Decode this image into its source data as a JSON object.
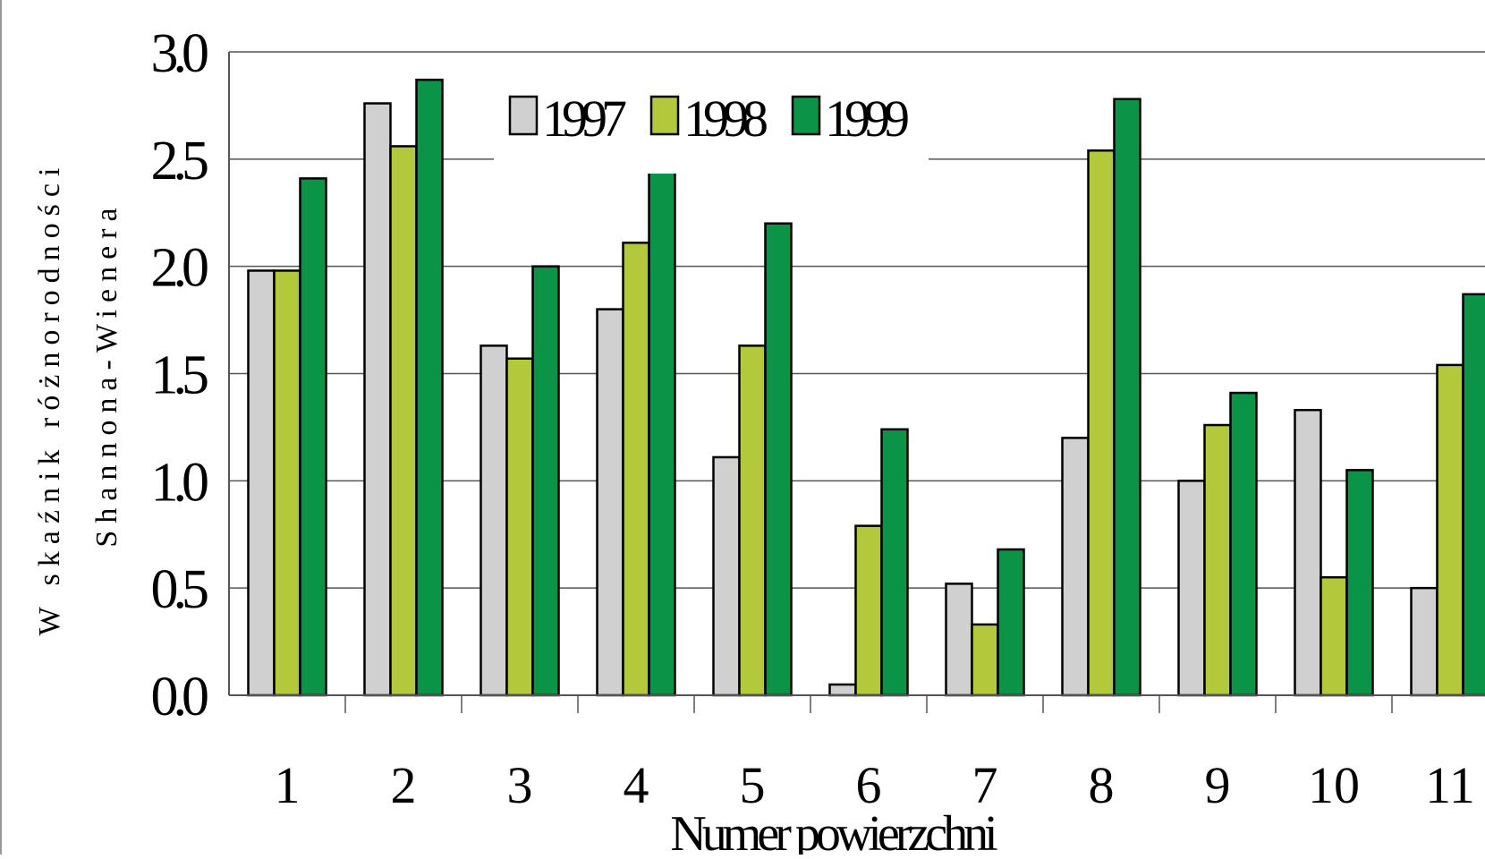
{
  "chart_data": {
    "type": "bar",
    "title": "",
    "xlabel": "Numer powierzchni",
    "ylabel_line1": "W skaźnik różnorodności",
    "ylabel_line2": "Shannona-Wienera",
    "ylim": [
      0,
      3
    ],
    "yticks": [
      "0.0",
      "0.5",
      "1.0",
      "1.5",
      "2.0",
      "2.5",
      "3.0"
    ],
    "categories": [
      "1",
      "2",
      "3",
      "4",
      "5",
      "6",
      "7",
      "8",
      "9",
      "10",
      "11"
    ],
    "grid": true,
    "legend_position": "top",
    "series": [
      {
        "name": "1997",
        "color": "#d0d0d0",
        "values": [
          1.98,
          2.76,
          1.63,
          1.8,
          1.11,
          0.05,
          0.52,
          1.2,
          1.0,
          1.33,
          0.5
        ]
      },
      {
        "name": "1998",
        "color": "#b3c93b",
        "values": [
          1.98,
          2.56,
          1.57,
          2.11,
          1.63,
          0.79,
          0.33,
          2.54,
          1.26,
          0.55,
          1.54
        ]
      },
      {
        "name": "1999",
        "color": "#0b9447",
        "values": [
          2.41,
          2.87,
          2.0,
          2.46,
          2.2,
          1.24,
          0.68,
          2.78,
          1.41,
          1.05,
          1.87
        ]
      }
    ]
  }
}
